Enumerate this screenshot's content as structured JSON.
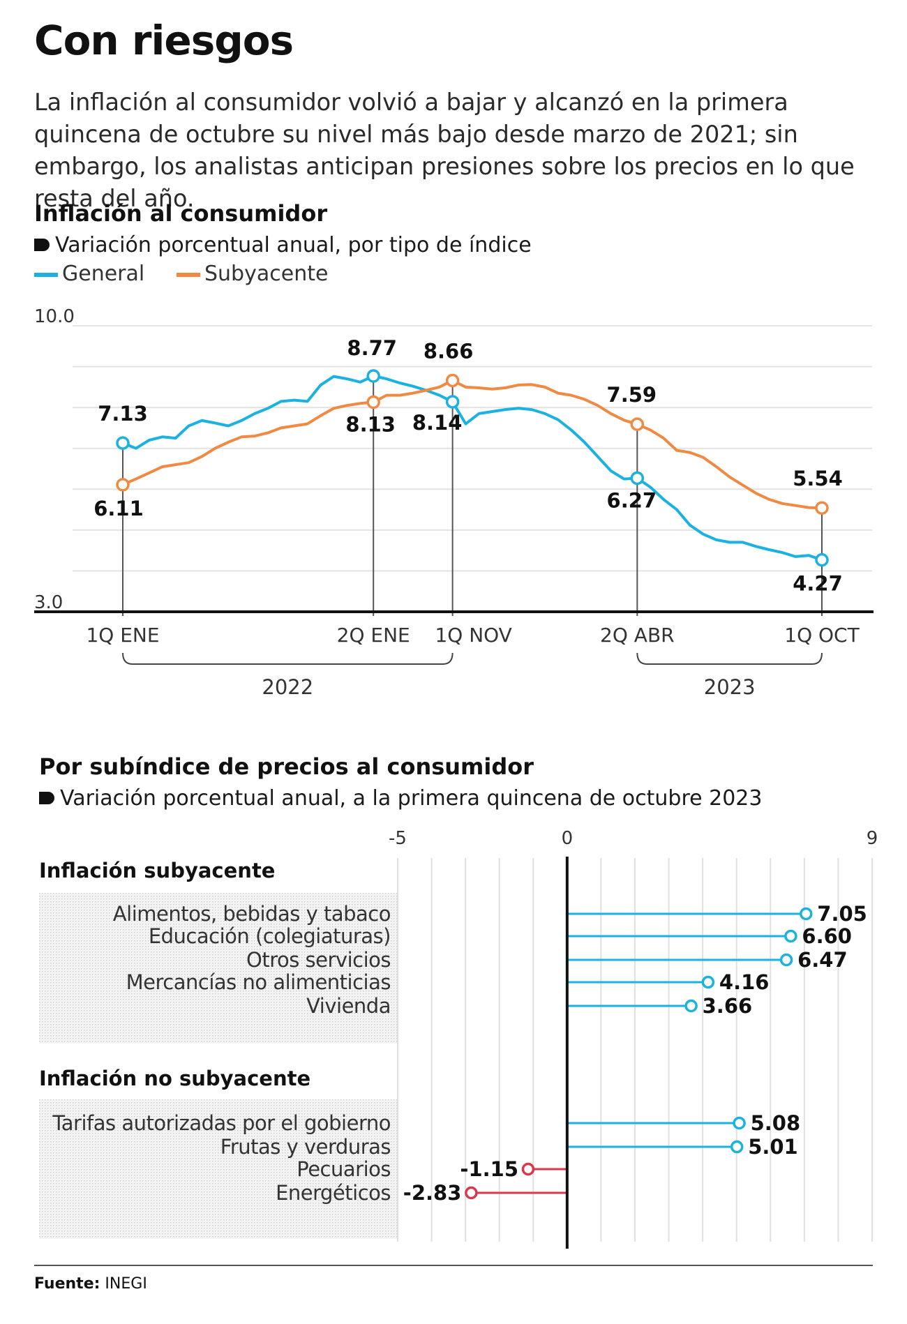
{
  "title": "Con riesgos",
  "intro": "La inflación al consumidor volvió a bajar y alcanzó en la primera quincena de octubre su nivel más bajo desde marzo de 2021; sin embargo, los analis­tas anticipan presiones sobre los precios en lo que resta del año.",
  "chart1": {
    "heading": "Inflación al consumidor",
    "subheading": "Variación porcentual anual, por tipo de índice",
    "legend": [
      {
        "name": "General",
        "color": "#1bb1e0"
      },
      {
        "name": "Subyacente",
        "color": "#f08a42"
      }
    ],
    "y_top_label": "10.0",
    "y_bottom_label": "3.0",
    "year_2022": "2022",
    "year_2023": "2023"
  },
  "chart2": {
    "heading": "Por subíndice de precios al consumidor",
    "subheading": "Variación porcentual anual, a la primera quincena de octubre 2023",
    "group1": "Inflación subyacente",
    "group2": "Inflación no subyacente"
  },
  "source_label": "Fuente:",
  "source_value": "INEGI",
  "chart_data": [
    {
      "type": "line",
      "title": "Inflación al consumidor",
      "subtitle": "Variación porcentual anual, por tipo de índice",
      "ylim": [
        3.0,
        10.0
      ],
      "x_labels": [
        "1Q ENE",
        "2Q ENE",
        "1Q NOV",
        "2Q ABR",
        "1Q OCT"
      ],
      "x_label_index": [
        0,
        19,
        25,
        39,
        53
      ],
      "year_groups": [
        {
          "label": "2022",
          "from": "1Q ENE",
          "to": "1Q NOV"
        },
        {
          "label": "2023",
          "from": "2Q ABR",
          "to": "1Q OCT"
        }
      ],
      "grid": true,
      "legend_position": "top-left",
      "series": [
        {
          "name": "General",
          "color": "#1bb1e0",
          "values": [
            7.13,
            7.0,
            7.2,
            7.28,
            7.25,
            7.55,
            7.68,
            7.62,
            7.55,
            7.68,
            7.85,
            7.98,
            8.15,
            8.18,
            8.15,
            8.55,
            8.76,
            8.7,
            8.62,
            8.77,
            8.7,
            8.6,
            8.52,
            8.42,
            8.3,
            8.14,
            7.6,
            7.85,
            7.9,
            7.95,
            7.98,
            7.95,
            7.85,
            7.7,
            7.45,
            7.15,
            6.8,
            6.45,
            6.25,
            6.27,
            6.05,
            5.75,
            5.5,
            5.12,
            4.9,
            4.76,
            4.7,
            4.7,
            4.6,
            4.52,
            4.45,
            4.35,
            4.38,
            4.27
          ],
          "labeled_points": [
            {
              "index": 0,
              "label": "7.13"
            },
            {
              "index": 19,
              "label": "8.77"
            },
            {
              "index": 25,
              "label": "8.14"
            },
            {
              "index": 39,
              "label": "6.27"
            },
            {
              "index": 53,
              "label": "4.27"
            }
          ]
        },
        {
          "name": "Subyacente",
          "color": "#f08a42",
          "values": [
            6.11,
            6.25,
            6.4,
            6.55,
            6.6,
            6.65,
            6.8,
            7.0,
            7.15,
            7.28,
            7.3,
            7.38,
            7.5,
            7.55,
            7.6,
            7.8,
            7.98,
            8.05,
            8.1,
            8.13,
            8.3,
            8.3,
            8.35,
            8.42,
            8.5,
            8.66,
            8.5,
            8.48,
            8.45,
            8.48,
            8.55,
            8.56,
            8.5,
            8.35,
            8.3,
            8.2,
            8.05,
            7.85,
            7.69,
            7.59,
            7.45,
            7.25,
            6.95,
            6.9,
            6.78,
            6.55,
            6.3,
            6.1,
            5.9,
            5.75,
            5.65,
            5.6,
            5.55,
            5.54
          ],
          "labeled_points": [
            {
              "index": 0,
              "label": "6.11"
            },
            {
              "index": 19,
              "label": "8.13"
            },
            {
              "index": 25,
              "label": "8.66"
            },
            {
              "index": 39,
              "label": "7.59"
            },
            {
              "index": 53,
              "label": "5.54"
            }
          ]
        }
      ]
    },
    {
      "type": "bar",
      "title": "Por subíndice de precios al consumidor",
      "subtitle": "Variación porcentual anual, a la primera quincena de octubre 2023",
      "xlim": [
        -5,
        9
      ],
      "ticks": [
        "-5",
        "0",
        "9"
      ],
      "positive_color": "#1bb1e0",
      "negative_color": "#d9374b",
      "groups": [
        {
          "name": "Inflación subyacente",
          "categories": [
            "Alimentos, bebidas y tabaco",
            "Educación (colegiaturas)",
            "Otros servicios",
            "Mercancías no alimenticias",
            "Vivienda"
          ],
          "values": [
            7.05,
            6.6,
            6.47,
            4.16,
            3.66
          ],
          "labels": [
            "7.05",
            "6.60",
            "6.47",
            "4.16",
            "3.66"
          ]
        },
        {
          "name": "Inflación no subyacente",
          "categories": [
            "Tarifas autorizadas por el gobierno",
            "Frutas y verduras",
            "Pecuarios",
            "Energéticos"
          ],
          "values": [
            5.08,
            5.01,
            -1.15,
            -2.83
          ],
          "labels": [
            "5.08",
            "5.01",
            "-1.15",
            "-2.83"
          ]
        }
      ]
    }
  ]
}
